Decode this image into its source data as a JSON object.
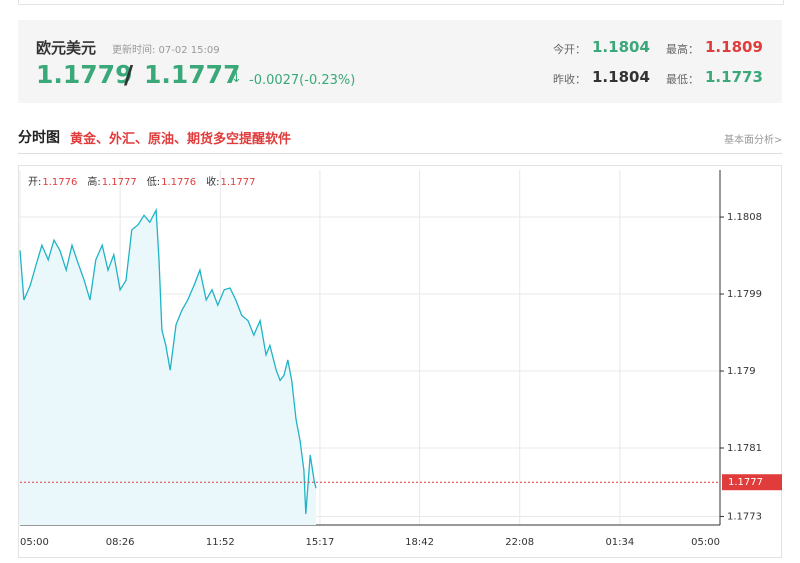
{
  "header": {
    "name": "欧元美元",
    "update": "更新时间: 07-02 15:09",
    "price": "1.1779",
    "separator": "/",
    "price2": "1.1777",
    "arrow": "↓",
    "change": "-0.0027(-0.23%)",
    "stats": [
      {
        "label": "今开：",
        "value": "1.1804"
      },
      {
        "label": "最高：",
        "value": "1.1809"
      },
      {
        "label": "昨收：",
        "value": "1.1804"
      },
      {
        "label": "最低：",
        "value": "1.1773"
      }
    ]
  },
  "section": {
    "title": "分时图",
    "promo": "黄金、外汇、原油、期货多空提醒软件",
    "link": "基本面分析>"
  },
  "info": [
    {
      "label": "开:",
      "value": "1.1776"
    },
    {
      "label": "高:",
      "value": "1.1777"
    },
    {
      "label": "低:",
      "value": "1.1776"
    },
    {
      "label": "收:",
      "value": "1.1777"
    }
  ],
  "chart_data": {
    "type": "line",
    "color": "#1fb3c6",
    "fill": "#eaf8fb",
    "x": [
      0,
      8,
      21,
      33,
      45,
      58,
      70,
      82,
      95,
      107,
      119,
      132,
      144,
      156,
      169,
      181,
      193,
      206,
      218,
      230,
      243,
      255,
      267,
      280,
      286,
      292,
      300,
      309,
      321,
      333,
      345,
      358,
      370,
      383,
      395,
      407,
      420,
      432,
      444,
      456,
      469,
      481,
      494,
      506,
      514,
      527,
      535,
      543,
      551,
      559,
      568,
      576,
      584,
      588,
      597,
      605,
      609
    ],
    "values": [
      1.18041,
      1.17983,
      1.18,
      1.18024,
      1.18047,
      1.1803,
      1.18053,
      1.18041,
      1.18018,
      1.18047,
      1.18027,
      1.18006,
      1.17983,
      1.1803,
      1.18047,
      1.18018,
      1.18036,
      1.17995,
      1.18006,
      1.18065,
      1.18071,
      1.18082,
      1.18074,
      1.18088,
      1.1803,
      1.17948,
      1.1793,
      1.17901,
      1.17954,
      1.17971,
      1.17983,
      1.18,
      1.18018,
      1.17983,
      1.17995,
      1.17977,
      1.17995,
      1.17997,
      1.17983,
      1.17965,
      1.17959,
      1.17942,
      1.17959,
      1.17919,
      1.1793,
      1.17901,
      1.17889,
      1.17895,
      1.17913,
      1.17889,
      1.17843,
      1.17819,
      1.17784,
      1.17733,
      1.17802,
      1.17772,
      1.17763
    ],
    "xlim": [
      0,
      1440
    ],
    "xticks": [
      {
        "value": 0,
        "label": "05:00"
      },
      {
        "value": 206,
        "label": "08:26"
      },
      {
        "value": 412,
        "label": "11:52"
      },
      {
        "value": 617,
        "label": "15:17"
      },
      {
        "value": 822,
        "label": "18:42"
      },
      {
        "value": 1028,
        "label": "22:08"
      },
      {
        "value": 1234,
        "label": "01:34"
      },
      {
        "value": 1440,
        "label": "05:00"
      }
    ],
    "ylim": [
      1.1772,
      1.18135
    ],
    "yticks": [
      1.1773,
      1.1781,
      1.179,
      1.1799,
      1.1808
    ],
    "current_price": 1.1777,
    "current_color": "#e03c3c",
    "grid": true
  }
}
